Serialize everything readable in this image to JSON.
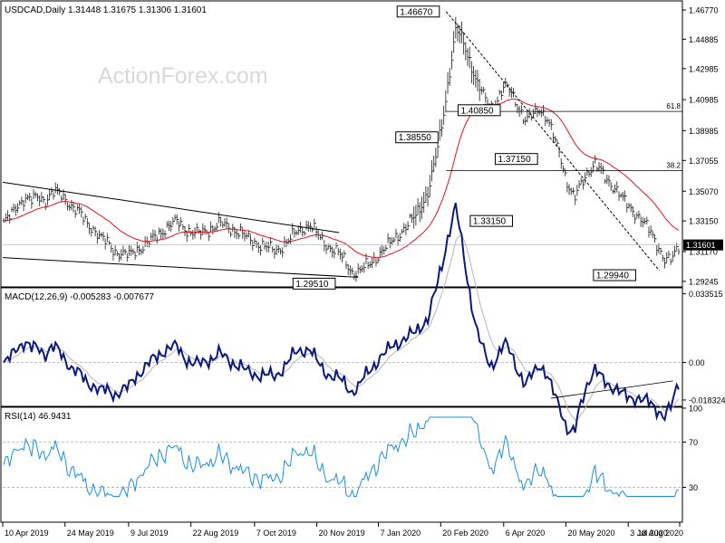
{
  "header": {
    "symbol_line": "USDCAD,Daily  1.31448 1.31675 1.31306 1.31601",
    "watermark": "ActionForex.com"
  },
  "chart_data": [
    {
      "type": "ohlc",
      "panel": "price",
      "y_ticks": [
        "1.46770",
        "1.44885",
        "1.42985",
        "1.40985",
        "1.38985",
        "1.37055",
        "1.35070",
        "1.33150",
        "1.31170",
        "1.29245"
      ],
      "y_tick_values": [
        1.4677,
        1.44885,
        1.42985,
        1.40985,
        1.38985,
        1.37055,
        1.3507,
        1.3315,
        1.3117,
        1.29245
      ],
      "ylim": [
        1.2895,
        1.473
      ],
      "current_price": "1.31601",
      "current_price_value": 1.31601,
      "fib_levels": [
        {
          "label": "61.8",
          "value": 1.4022
        },
        {
          "label": "38.2",
          "value": 1.364
        }
      ],
      "annotations": [
        {
          "label": "1.46670",
          "x": 0.645,
          "y": 1.4667
        },
        {
          "label": "1.40850",
          "x": 0.735,
          "y": 1.403
        },
        {
          "label": "1.38550",
          "x": 0.643,
          "y": 1.3855
        },
        {
          "label": "1.37150",
          "x": 0.79,
          "y": 1.3715
        },
        {
          "label": "1.33150",
          "x": 0.753,
          "y": 1.3315
        },
        {
          "label": "1.29510",
          "x": 0.46,
          "y": 1.2951
        },
        {
          "label": "1.29940",
          "x": 0.935,
          "y": 1.2994
        }
      ],
      "close_series": [
        1.3305,
        1.3345,
        1.342,
        1.3465,
        1.3445,
        1.347,
        1.345,
        1.35,
        1.349,
        1.345,
        1.34,
        1.336,
        1.33,
        1.326,
        1.32,
        1.317,
        1.312,
        1.31,
        1.309,
        1.313,
        1.315,
        1.318,
        1.322,
        1.326,
        1.329,
        1.331,
        1.327,
        1.324,
        1.323,
        1.325,
        1.327,
        1.33,
        1.328,
        1.326,
        1.324,
        1.32,
        1.318,
        1.316,
        1.314,
        1.312,
        1.315,
        1.319,
        1.324,
        1.327,
        1.329,
        1.323,
        1.318,
        1.314,
        1.311,
        1.306,
        1.299,
        1.298,
        1.302,
        1.306,
        1.31,
        1.314,
        1.32,
        1.324,
        1.328,
        1.334,
        1.342,
        1.35,
        1.37,
        1.395,
        1.425,
        1.455,
        1.448,
        1.435,
        1.42,
        1.412,
        1.405,
        1.41,
        1.418,
        1.415,
        1.405,
        1.395,
        1.4,
        1.405,
        1.398,
        1.386,
        1.374,
        1.356,
        1.345,
        1.356,
        1.364,
        1.368,
        1.362,
        1.357,
        1.352,
        1.345,
        1.34,
        1.336,
        1.33,
        1.324,
        1.316,
        1.306,
        1.306,
        1.316
      ]
    },
    {
      "type": "line",
      "panel": "macd",
      "title": "MACD(12,26,9) -0.005283 -0.007677",
      "y_ticks": [
        "0.033515",
        "0.00",
        "-0.018324"
      ],
      "y_tick_values": [
        0.033515,
        0.0,
        -0.018324
      ],
      "ylim": [
        -0.021,
        0.036
      ]
    },
    {
      "type": "line",
      "panel": "rsi",
      "title": "RSI(14) 46.9431",
      "y_ticks": [
        "100",
        "70",
        "30"
      ],
      "y_tick_values": [
        100,
        70,
        30
      ],
      "ylim": [
        0,
        100
      ]
    }
  ],
  "x_axis": {
    "labels": [
      "10 Apr 2019",
      "24 May 2019",
      "9 Jul 2019",
      "22 Aug 2019",
      "7 Oct 2019",
      "20 Nov 2019",
      "7 Jan 2020",
      "20 Feb 2020",
      "6 Apr 2020",
      "20 May 2020",
      "3 Jul 2020",
      "18 Aug 2020"
    ],
    "positions": [
      0.0,
      0.092,
      0.186,
      0.278,
      0.372,
      0.464,
      0.555,
      0.647,
      0.74,
      0.832,
      0.924,
      1.0
    ]
  }
}
